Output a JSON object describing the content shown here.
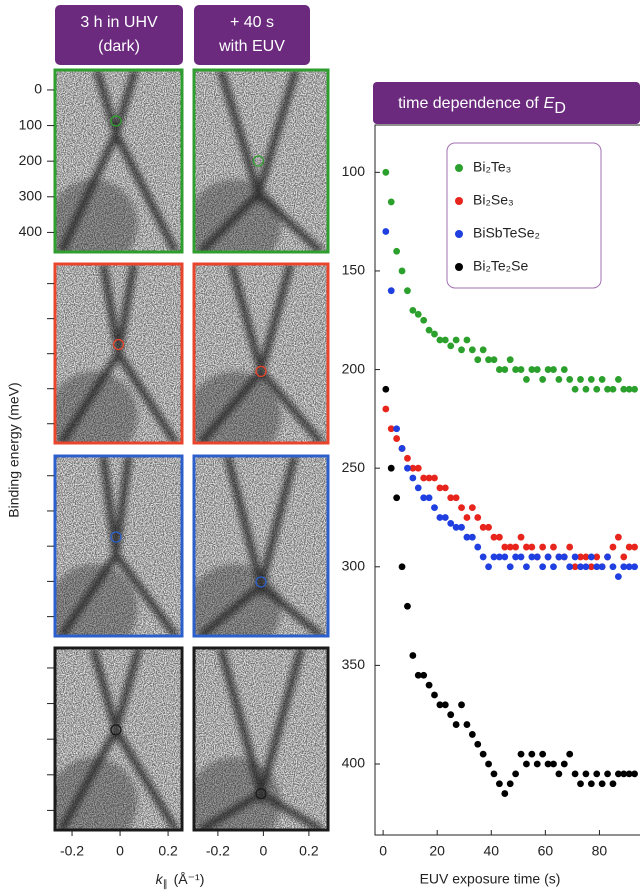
{
  "chart_data": [
    {
      "type": "arpes",
      "columns": [
        {
          "title": [
            "3 h in UHV",
            "(dark)"
          ],
          "xlim": [
            -0.271,
            0.258
          ],
          "xticks": [
            -0.2,
            0,
            0.2
          ]
        },
        {
          "title": [
            "+ 40 s",
            "with EUV"
          ],
          "xlim": [
            -0.305,
            0.284
          ],
          "xticks": [
            -0.2,
            0,
            0.2
          ]
        }
      ],
      "row_colors": [
        "#2e9e2e",
        "#e8452c",
        "#2b5fcc",
        "#1a1a1a"
      ],
      "ylabel": "Binding energy (meV)",
      "ylim": [
        -56,
        455
      ],
      "yticks": [
        0,
        100,
        200,
        300,
        400
      ],
      "xlabel": {
        "symbol": "k",
        "subscript": "∥",
        "unit": "(Å⁻¹)"
      }
    },
    {
      "type": "scatter",
      "title": {
        "text": "time dependence of",
        "symbol": "E",
        "subscript": "D"
      },
      "xlabel": "EUV exposure time (s)",
      "xlim": [
        -3,
        95
      ],
      "xticks": [
        0,
        20,
        40,
        60,
        80
      ],
      "ylim": [
        76,
        436
      ],
      "yticks": [
        100,
        150,
        200,
        250,
        300,
        350,
        400
      ],
      "y_inverted": true,
      "legend": "upper right",
      "x": [
        1,
        3,
        5,
        7,
        9,
        11,
        13,
        15,
        17,
        19,
        21,
        23,
        25,
        27,
        29,
        31,
        33,
        35,
        37,
        39,
        41,
        43,
        45,
        47,
        49,
        51,
        53,
        55,
        57,
        59,
        61,
        63,
        65,
        67,
        69,
        71,
        73,
        75,
        77,
        79,
        81,
        83,
        85,
        87,
        89,
        91,
        93
      ],
      "series": [
        {
          "name": "Bi₂Te₃",
          "color": "#2ca02c",
          "values": [
            100,
            115,
            140,
            150,
            160,
            170,
            172,
            175,
            180,
            182,
            185,
            185,
            188,
            185,
            190,
            185,
            190,
            195,
            190,
            195,
            195,
            200,
            200,
            195,
            200,
            200,
            205,
            200,
            200,
            205,
            200,
            200,
            205,
            200,
            205,
            210,
            205,
            210,
            205,
            210,
            205,
            210,
            210,
            205,
            210,
            210,
            210
          ]
        },
        {
          "name": "Bi₂Se₃",
          "color": "#e8251c",
          "values": [
            220,
            230,
            235,
            240,
            245,
            250,
            250,
            255,
            255,
            255,
            260,
            260,
            265,
            265,
            270,
            275,
            270,
            275,
            280,
            280,
            285,
            285,
            290,
            290,
            290,
            285,
            290,
            290,
            295,
            290,
            295,
            290,
            295,
            295,
            290,
            300,
            295,
            295,
            300,
            295,
            300,
            295,
            290,
            285,
            295,
            290,
            290
          ]
        },
        {
          "name": "BiSbTeSe₂",
          "color": "#1f3fe0",
          "values": [
            130,
            160,
            230,
            240,
            250,
            255,
            260,
            265,
            265,
            270,
            275,
            275,
            278,
            280,
            280,
            285,
            285,
            290,
            295,
            300,
            295,
            295,
            295,
            300,
            295,
            295,
            300,
            295,
            295,
            300,
            295,
            300,
            295,
            295,
            300,
            295,
            300,
            300,
            295,
            300,
            300,
            295,
            300,
            305,
            300,
            300,
            300
          ]
        },
        {
          "name": "Bi₂Te₂Se",
          "color": "#000000",
          "values": [
            210,
            250,
            265,
            300,
            320,
            345,
            355,
            355,
            360,
            365,
            370,
            370,
            375,
            380,
            370,
            380,
            385,
            390,
            395,
            400,
            405,
            410,
            415,
            410,
            405,
            395,
            400,
            395,
            400,
            395,
            400,
            400,
            405,
            400,
            395,
            405,
            410,
            405,
            410,
            405,
            410,
            405,
            410,
            405,
            405,
            405,
            405
          ]
        }
      ]
    }
  ]
}
